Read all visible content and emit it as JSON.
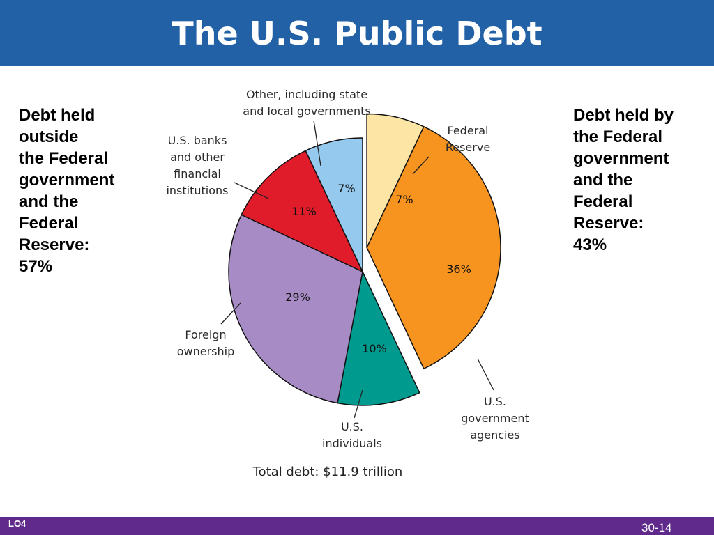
{
  "slide": {
    "title": "The U.S. Public Debt",
    "left_note": "Debt held\noutside\nthe Federal\ngovernment\nand the\nFederal\nReserve:\n57%",
    "right_note": "Debt held by\nthe Federal\ngovernment\nand the\nFederal\nReserve:\n43%",
    "learning_objective": "LO4",
    "slide_number": "30-14"
  },
  "colors": {
    "title_bar": "#2361a6",
    "footer_bar": "#5f2a8c"
  },
  "chart_data": {
    "type": "pie",
    "title": "",
    "total_label": "Total debt: $11.9 trillion",
    "slices": [
      {
        "label": "Federal Reserve",
        "label_lines": [
          "Federal",
          "Reserve"
        ],
        "value": 7,
        "value_label": "7%",
        "color": "#fde5a6",
        "group": "Debt held by the Federal government and the Federal Reserve"
      },
      {
        "label": "U.S. government agencies",
        "label_lines": [
          "U.S.",
          "government",
          "agencies"
        ],
        "value": 36,
        "value_label": "36%",
        "color": "#f6941f",
        "group": "Debt held by the Federal government and the Federal Reserve"
      },
      {
        "label": "U.S. individuals",
        "label_lines": [
          "U.S.",
          "individuals"
        ],
        "value": 10,
        "value_label": "10%",
        "color": "#009a8f",
        "group": "Debt held outside the Federal government and the Federal Reserve"
      },
      {
        "label": "Foreign ownership",
        "label_lines": [
          "Foreign",
          "ownership"
        ],
        "value": 29,
        "value_label": "29%",
        "color": "#a68bc4",
        "group": "Debt held outside the Federal government and the Federal Reserve"
      },
      {
        "label": "U.S. banks and other financial institutions",
        "label_lines": [
          "U.S. banks",
          "and other",
          "financial",
          "institutions"
        ],
        "value": 11,
        "value_label": "11%",
        "color": "#e11c2a",
        "group": "Debt held outside the Federal government and the Federal Reserve"
      },
      {
        "label": "Other, including state and local governments",
        "label_lines": [
          "Other, including state",
          "and local governments"
        ],
        "value": 7,
        "value_label": "7%",
        "color": "#95c9ee",
        "group": "Debt held outside the Federal government and the Federal Reserve"
      }
    ]
  }
}
